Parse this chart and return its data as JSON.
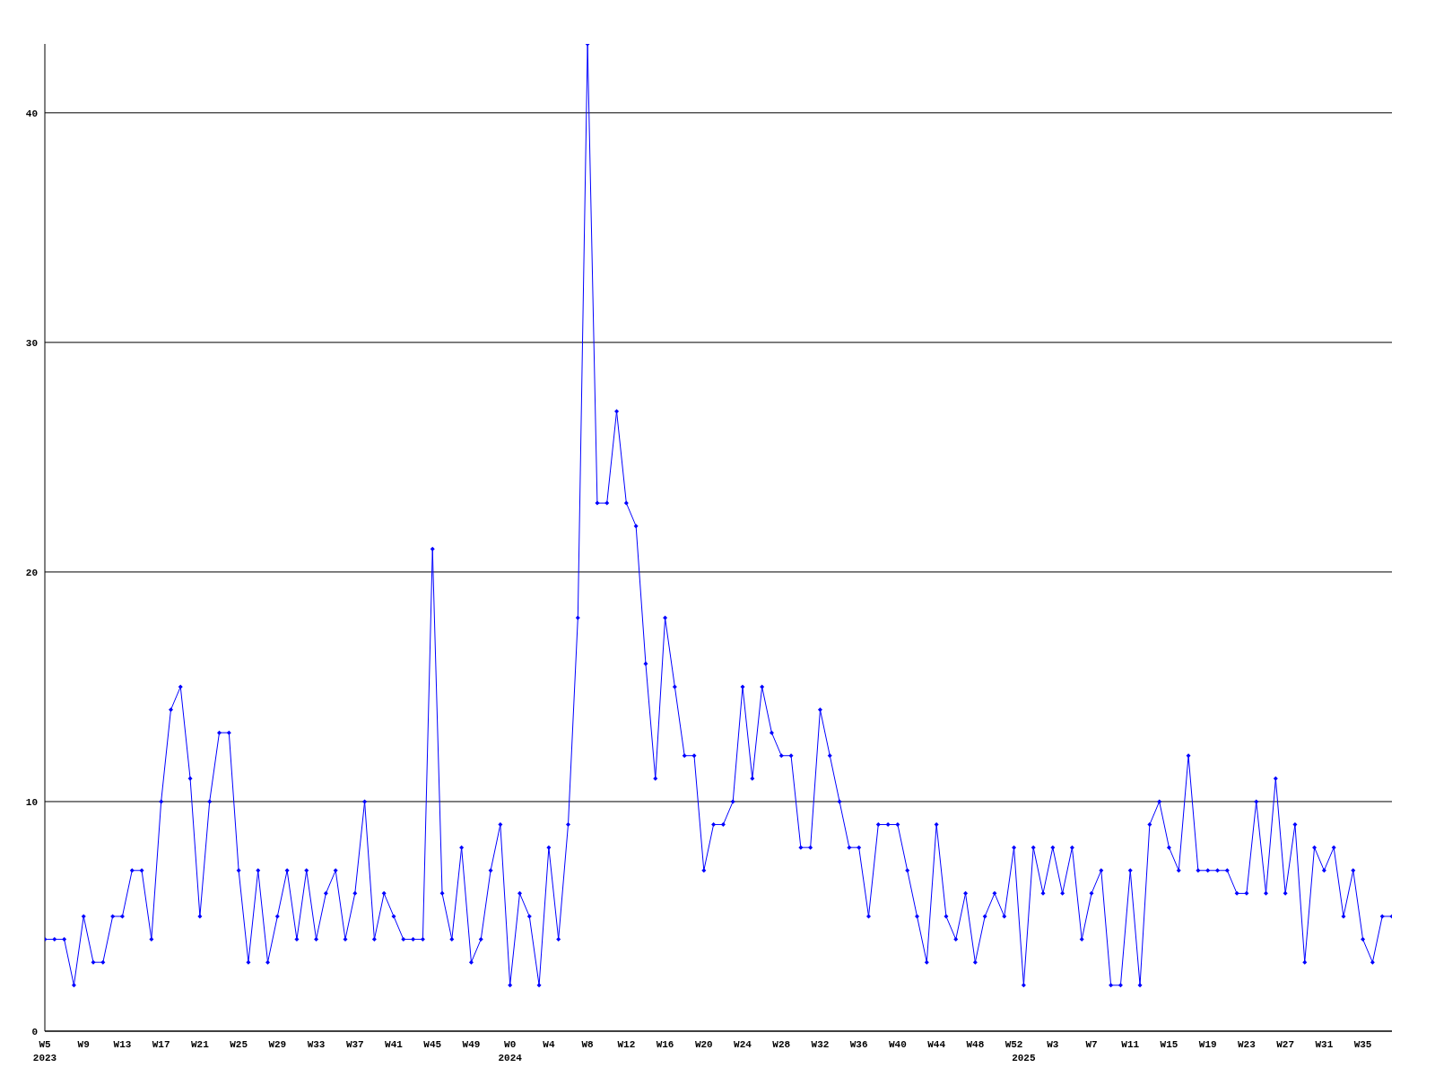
{
  "chart_data": {
    "type": "line",
    "categories": [
      "W5\n2023",
      null,
      null,
      null,
      "W9",
      null,
      null,
      null,
      "W13",
      null,
      null,
      null,
      "W17",
      null,
      null,
      null,
      "W21",
      null,
      null,
      null,
      "W25",
      null,
      null,
      null,
      "W29",
      null,
      null,
      null,
      "W33",
      null,
      null,
      null,
      "W37",
      null,
      null,
      null,
      "W41",
      null,
      null,
      null,
      "W45",
      null,
      null,
      null,
      "W49",
      null,
      null,
      null,
      "W0\n2024",
      null,
      null,
      null,
      "W4",
      null,
      null,
      null,
      "W8",
      null,
      null,
      null,
      "W12",
      null,
      null,
      null,
      "W16",
      null,
      null,
      null,
      "W20",
      null,
      null,
      null,
      "W24",
      null,
      null,
      null,
      "W28",
      null,
      null,
      null,
      "W32",
      null,
      null,
      null,
      "W36",
      null,
      null,
      null,
      "W40",
      null,
      null,
      null,
      "W44",
      null,
      null,
      null,
      "W48",
      null,
      null,
      null,
      "W52",
      "\n2025",
      null,
      null,
      "W3",
      null,
      null,
      null,
      "W7",
      null,
      null,
      null,
      "W11",
      null,
      null,
      null,
      "W15",
      null,
      null,
      null,
      "W19",
      null,
      null,
      null,
      "W23",
      null,
      null,
      null,
      "W27",
      null,
      null,
      null,
      "W31",
      null,
      null,
      null,
      "W35",
      null,
      null,
      null
    ],
    "series": [
      {
        "color": "#0000ff",
        "values": [
          4,
          4,
          4,
          2,
          5,
          3,
          3,
          5,
          5,
          7,
          7,
          4,
          10,
          14,
          15,
          11,
          5,
          10,
          13,
          13,
          7,
          3,
          7,
          3,
          5,
          7,
          4,
          7,
          4,
          6,
          7,
          4,
          6,
          10,
          4,
          6,
          5,
          4,
          4,
          4,
          21,
          6,
          4,
          8,
          3,
          4,
          7,
          9,
          2,
          6,
          5,
          2,
          8,
          4,
          9,
          18,
          43,
          23,
          23,
          27,
          23,
          22,
          16,
          11,
          18,
          15,
          12,
          12,
          7,
          9,
          9,
          10,
          15,
          11,
          15,
          13,
          12,
          12,
          8,
          8,
          14,
          12,
          10,
          8,
          8,
          5,
          9,
          9,
          9,
          7,
          5,
          3,
          9,
          5,
          4,
          6,
          3,
          5,
          6,
          5,
          8,
          2,
          8,
          6,
          8,
          6,
          8,
          4,
          6,
          7,
          2,
          2,
          7,
          2,
          9,
          10,
          8,
          7,
          12,
          7,
          7,
          7,
          7,
          6,
          6,
          10,
          6,
          11,
          6,
          9,
          3,
          8,
          7,
          8,
          5,
          7,
          4,
          3,
          5,
          5
        ]
      }
    ],
    "ylim": [
      0,
      43
    ],
    "yticks": [
      0,
      10,
      20,
      30,
      40
    ],
    "grid": "y",
    "marker": "diamond",
    "line_style": "solid",
    "legend": false
  }
}
